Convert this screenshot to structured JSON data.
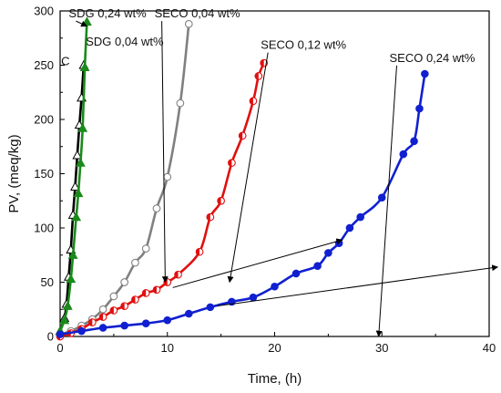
{
  "chart_data": {
    "type": "line",
    "title": "",
    "xlabel": "Time, (h)",
    "ylabel": "PV, (meq/kg)",
    "xlim": [
      0,
      40
    ],
    "ylim": [
      0,
      300
    ],
    "xticks": [
      0,
      10,
      20,
      30,
      40
    ],
    "yticks": [
      0,
      50,
      100,
      150,
      200,
      250,
      300
    ],
    "grid": false,
    "legend": "none",
    "series": [
      {
        "name": "",
        "color": "#000000",
        "marker": "triangle-open",
        "x": [
          0,
          0.4,
          0.6,
          0.8,
          1.0,
          1.2,
          1.4,
          1.6,
          1.8,
          2.0,
          2.2
        ],
        "y": [
          5,
          17,
          30,
          55,
          80,
          112,
          138,
          167,
          195,
          220,
          250
        ]
      },
      {
        "name": "",
        "color": "#1a8a1a",
        "marker": "triangle-filled",
        "x": [
          0,
          0.4,
          0.7,
          1.0,
          1.2,
          1.5,
          1.7,
          1.9,
          2.1,
          2.3,
          2.5
        ],
        "y": [
          5,
          15,
          28,
          53,
          75,
          110,
          132,
          160,
          192,
          248,
          290
        ]
      },
      {
        "name": "",
        "color": "#808080",
        "marker": "circle-open",
        "x": [
          0,
          1,
          2,
          3,
          4,
          5,
          6,
          7,
          8,
          9,
          10,
          11.2,
          12
        ],
        "y": [
          2,
          5,
          10,
          16,
          25,
          37,
          50,
          68,
          81,
          118,
          147,
          215,
          288
        ]
      },
      {
        "name": "",
        "color": "#e01010",
        "marker": "circle-half",
        "x": [
          0,
          1,
          2,
          3,
          4,
          5,
          6,
          7,
          8,
          9,
          10,
          11,
          13,
          14,
          15,
          16,
          17,
          18,
          18.5,
          19
        ],
        "y": [
          0,
          3,
          7,
          13,
          18,
          24,
          28,
          34,
          40,
          43,
          50,
          57,
          78,
          110,
          125,
          160,
          185,
          217,
          240,
          252
        ]
      },
      {
        "name": "",
        "color": "#1020d0",
        "marker": "circle-filled",
        "x": [
          0,
          2,
          4,
          6,
          8,
          10,
          12,
          14,
          16,
          18,
          20,
          22,
          24,
          25,
          26,
          27,
          28,
          30,
          32,
          33,
          33.5,
          34
        ],
        "y": [
          2,
          5,
          8,
          10,
          12,
          15,
          21,
          27,
          32,
          36,
          46,
          58,
          65,
          77,
          86,
          100,
          110,
          128,
          168,
          180,
          210,
          242
        ]
      }
    ],
    "annotations": [
      {
        "text": "SDG 0,24 wt%",
        "x": 0.8,
        "y": 294,
        "arrow_to": [
          2.5,
          286
        ]
      },
      {
        "text": "SECO 0,04 wt%",
        "x": 8.8,
        "y": 294,
        "arrow_to": [
          9.8,
          50
        ]
      },
      {
        "text": "SDG 0,04 wt%",
        "x": 2.4,
        "y": 268
      },
      {
        "text": "C",
        "x": 0.1,
        "y": 250
      },
      {
        "text": "SECO 0,12 wt%",
        "x": 18.7,
        "y": 265,
        "arrow_to": [
          15.8,
          50
        ]
      },
      {
        "text": "SECO 0,24 wt%",
        "x": 30.7,
        "y": 253,
        "arrow_to": [
          29.7,
          0
        ]
      }
    ],
    "extra_arrows": [
      {
        "from": [
          10.5,
          45
        ],
        "to": [
          26.3,
          89
        ]
      },
      {
        "from": [
          14.6,
          28
        ],
        "to": [
          40.8,
          64
        ]
      }
    ]
  }
}
